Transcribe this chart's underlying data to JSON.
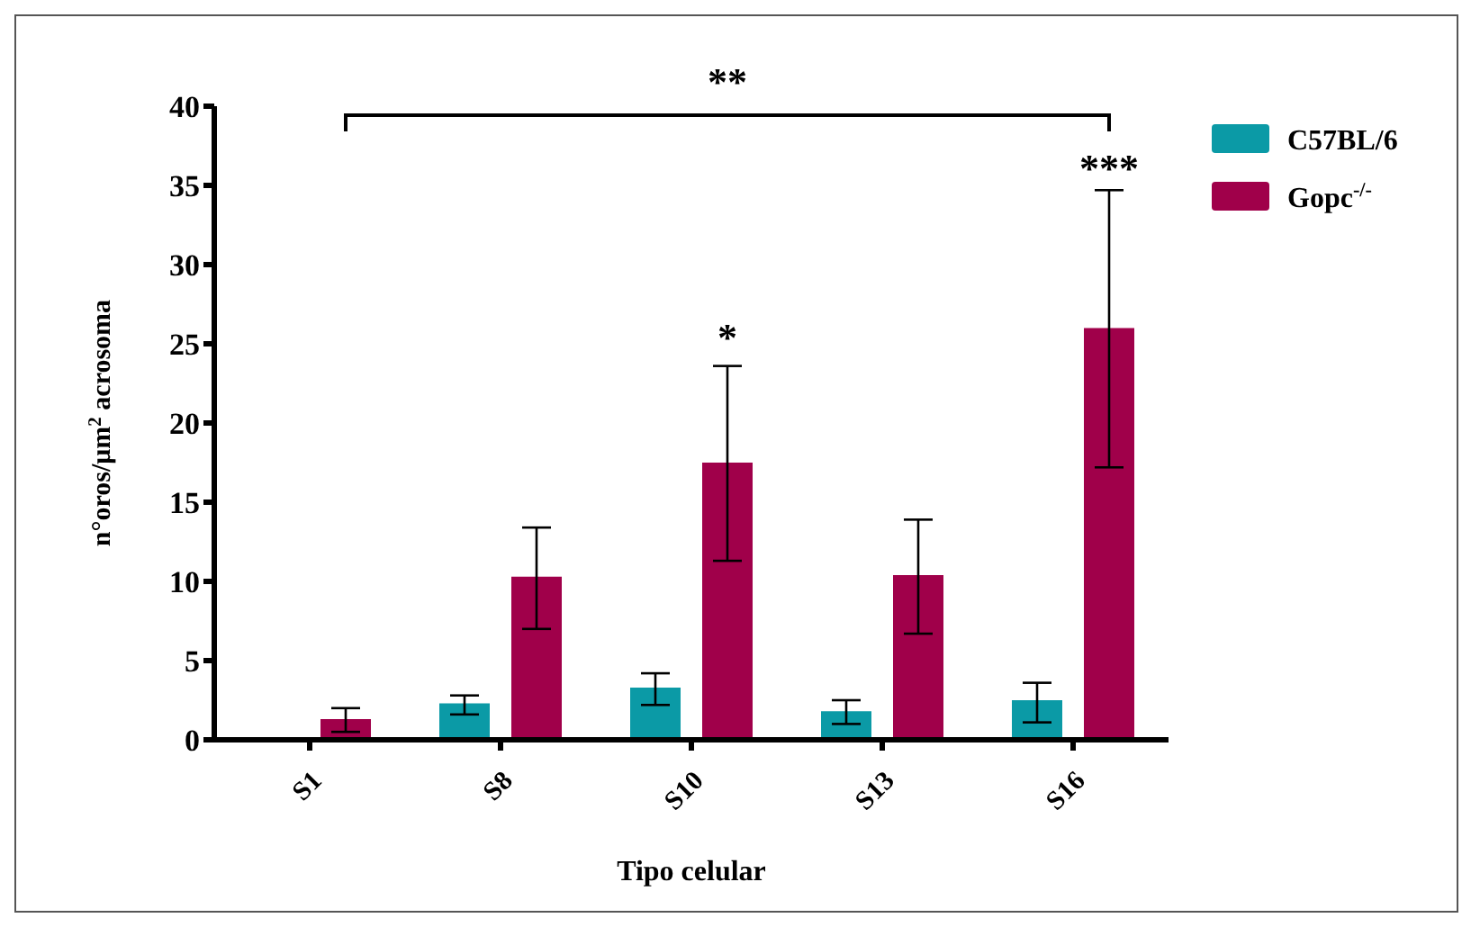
{
  "chart_data": {
    "type": "bar",
    "xlabel": "Tipo celular",
    "ylabel": "n°oros/μm$^{2}$ acrosoma",
    "categories": [
      "S1",
      "S8",
      "S10",
      "S13",
      "S16"
    ],
    "series": [
      {
        "name": "C57BL/6",
        "color": "#0b9aa6",
        "values": [
          0,
          2.3,
          3.3,
          1.8,
          2.5
        ],
        "errors": [
          null,
          [
            1.6,
            2.8
          ],
          [
            2.2,
            4.2
          ],
          [
            1.0,
            2.5
          ],
          [
            1.1,
            3.6
          ]
        ]
      },
      {
        "name": "Gopc$^{-/-}$",
        "color": "#a0004a",
        "values": [
          1.3,
          10.3,
          17.5,
          10.4,
          26.0
        ],
        "errors": [
          [
            0.5,
            2.0
          ],
          [
            7.0,
            13.4
          ],
          [
            11.3,
            23.6
          ],
          [
            6.7,
            13.9
          ],
          [
            17.2,
            34.7
          ]
        ]
      }
    ],
    "ylim": [
      0,
      40
    ],
    "yticks": [
      0,
      5,
      10,
      15,
      20,
      25,
      30,
      35,
      40
    ],
    "grid": false,
    "legend": "top right",
    "annotations": [
      "**",
      "*",
      "***"
    ]
  }
}
